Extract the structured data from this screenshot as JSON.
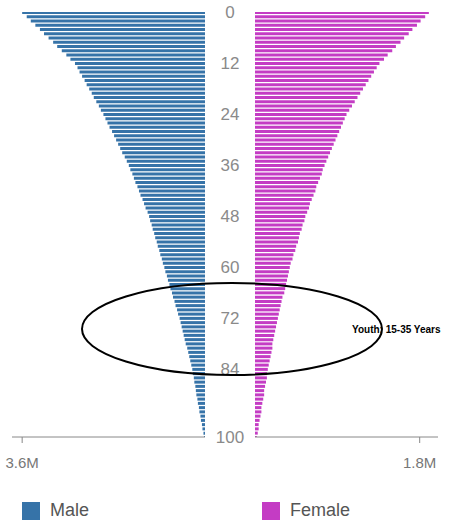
{
  "chart_data": {
    "type": "bar",
    "orientation": "horizontal",
    "grid": false,
    "legend": "bottom",
    "y": [
      0,
      1,
      2,
      3,
      4,
      5,
      6,
      7,
      8,
      9,
      10,
      11,
      12,
      13,
      14,
      15,
      16,
      17,
      18,
      19,
      20,
      21,
      22,
      23,
      24,
      25,
      26,
      27,
      28,
      29,
      30,
      31,
      32,
      33,
      34,
      35,
      36,
      37,
      38,
      39,
      40,
      41,
      42,
      43,
      44,
      45,
      46,
      47,
      48,
      49,
      50,
      51,
      52,
      53,
      54,
      55,
      56,
      57,
      58,
      59,
      60,
      61,
      62,
      63,
      64,
      65,
      66,
      67,
      68,
      69,
      70,
      71,
      72,
      73,
      74,
      75,
      76,
      77,
      78,
      79,
      80,
      81,
      82,
      83,
      84,
      85,
      86,
      87,
      88,
      89,
      90,
      91,
      92,
      93,
      94,
      95,
      96,
      97,
      98,
      99,
      100
    ],
    "ylim": [
      0,
      100
    ],
    "yticks": [
      0,
      12,
      24,
      36,
      48,
      60,
      72,
      84,
      100
    ],
    "series": [
      {
        "name": "Male",
        "color": "#3673a8",
        "xlim": [
          0,
          3800000
        ],
        "xticks": [
          {
            "value": 3600000,
            "label": "3.6M"
          }
        ],
        "values": [
          3600000,
          3510000,
          3430000,
          3340000,
          3250000,
          3170000,
          3080000,
          2990000,
          2910000,
          2820000,
          2730000,
          2650000,
          2560000,
          2510000,
          2470000,
          2420000,
          2370000,
          2330000,
          2280000,
          2230000,
          2190000,
          2140000,
          2090000,
          2050000,
          2000000,
          1960000,
          1920000,
          1880000,
          1830000,
          1790000,
          1750000,
          1710000,
          1670000,
          1630000,
          1580000,
          1540000,
          1500000,
          1470000,
          1430000,
          1400000,
          1370000,
          1330000,
          1300000,
          1270000,
          1230000,
          1200000,
          1170000,
          1130000,
          1100000,
          1080000,
          1050000,
          1030000,
          1000000,
          980000,
          950000,
          930000,
          900000,
          880000,
          850000,
          830000,
          800000,
          780000,
          750000,
          730000,
          700000,
          680000,
          650000,
          630000,
          600000,
          580000,
          550000,
          530000,
          500000,
          480000,
          460000,
          440000,
          420000,
          400000,
          380000,
          350000,
          330000,
          310000,
          290000,
          270000,
          250000,
          240000,
          220000,
          210000,
          190000,
          180000,
          170000,
          150000,
          140000,
          120000,
          110000,
          90000,
          80000,
          60000,
          50000,
          30000,
          20000
        ]
      },
      {
        "name": "Female",
        "color": "#c43cc4",
        "xlim": [
          0,
          2000000
        ],
        "xticks": [
          {
            "value": 1800000,
            "label": "1.8M"
          }
        ],
        "values": [
          1900000,
          1860000,
          1810000,
          1770000,
          1720000,
          1680000,
          1630000,
          1590000,
          1540000,
          1500000,
          1450000,
          1410000,
          1360000,
          1330000,
          1300000,
          1270000,
          1240000,
          1210000,
          1180000,
          1150000,
          1120000,
          1090000,
          1060000,
          1030000,
          1000000,
          980000,
          960000,
          940000,
          920000,
          900000,
          880000,
          860000,
          840000,
          820000,
          800000,
          780000,
          760000,
          740000,
          730000,
          710000,
          690000,
          670000,
          660000,
          640000,
          620000,
          600000,
          590000,
          570000,
          550000,
          540000,
          520000,
          510000,
          490000,
          480000,
          470000,
          450000,
          440000,
          420000,
          410000,
          390000,
          380000,
          370000,
          360000,
          350000,
          340000,
          330000,
          320000,
          300000,
          290000,
          280000,
          270000,
          260000,
          250000,
          240000,
          230000,
          220000,
          210000,
          200000,
          190000,
          190000,
          180000,
          170000,
          160000,
          150000,
          140000,
          130000,
          130000,
          120000,
          110000,
          100000,
          100000,
          90000,
          80000,
          70000,
          70000,
          60000,
          50000,
          40000,
          40000,
          30000,
          20000
        ]
      }
    ],
    "annotations": [
      {
        "text": "Youth: 15-35 Years"
      }
    ]
  }
}
